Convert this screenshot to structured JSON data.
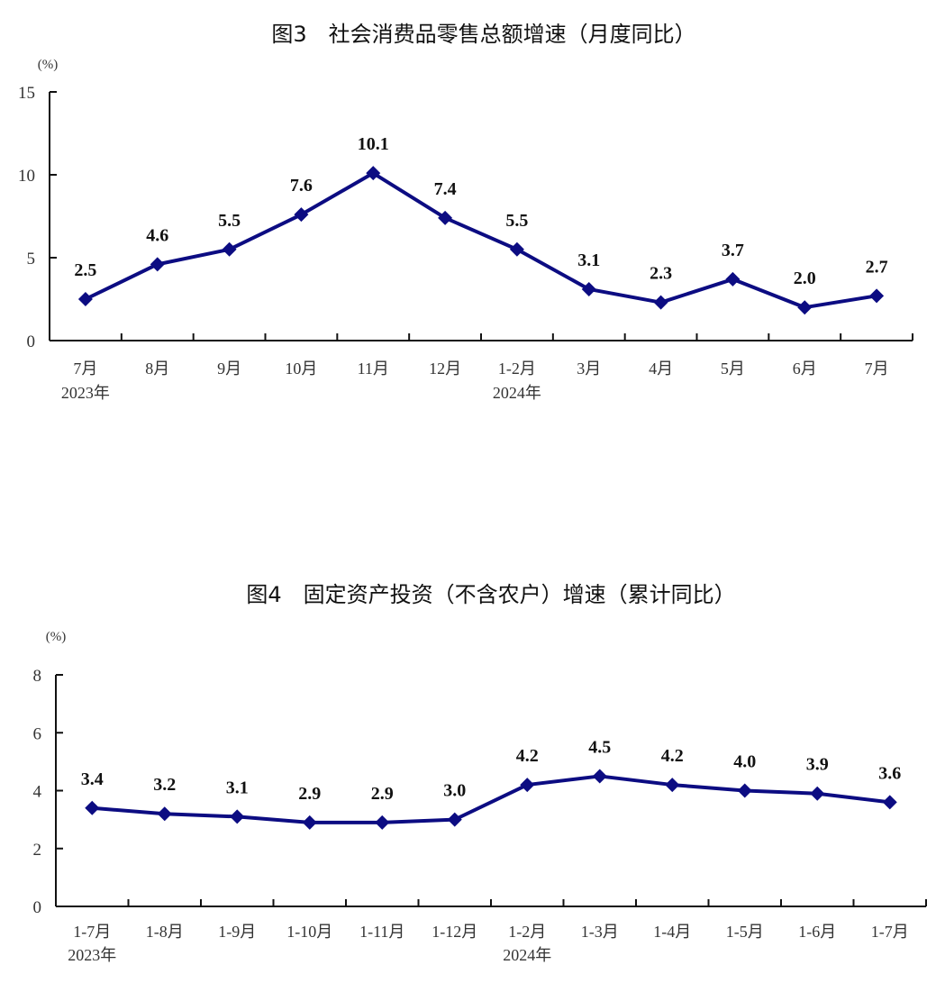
{
  "chart_data": [
    {
      "type": "line",
      "title": "图3　社会消费品零售总额增速（月度同比）",
      "ylabel": "(%)",
      "ylim": [
        0,
        15
      ],
      "yticks": [
        "0",
        "5",
        "10",
        "15"
      ],
      "categories": [
        "7月",
        "8月",
        "9月",
        "10月",
        "11月",
        "12月",
        "1-2月",
        "3月",
        "4月",
        "5月",
        "6月",
        "7月"
      ],
      "year_labels": [
        {
          "index": 0,
          "text": "2023年"
        },
        {
          "index": 6,
          "text": "2024年"
        }
      ],
      "values": [
        2.5,
        4.6,
        5.5,
        7.6,
        10.1,
        7.4,
        5.5,
        3.1,
        2.3,
        3.7,
        2.0,
        2.7
      ],
      "value_labels": [
        "2.5",
        "4.6",
        "5.5",
        "7.6",
        "10.1",
        "7.4",
        "5.5",
        "3.1",
        "2.3",
        "3.7",
        "2.0",
        "2.7"
      ],
      "color": "#0c0c82",
      "grid": false
    },
    {
      "type": "line",
      "title": "图4　固定资产投资（不含农户）增速（累计同比）",
      "ylabel": "(%)",
      "ylim": [
        0,
        8
      ],
      "yticks": [
        "0",
        "2",
        "4",
        "6",
        "8"
      ],
      "categories": [
        "1-7月",
        "1-8月",
        "1-9月",
        "1-10月",
        "1-11月",
        "1-12月",
        "1-2月",
        "1-3月",
        "1-4月",
        "1-5月",
        "1-6月",
        "1-7月"
      ],
      "year_labels": [
        {
          "index": 0,
          "text": "2023年"
        },
        {
          "index": 6,
          "text": "2024年"
        }
      ],
      "values": [
        3.4,
        3.2,
        3.1,
        2.9,
        2.9,
        3.0,
        4.2,
        4.5,
        4.2,
        4.0,
        3.9,
        3.6
      ],
      "value_labels": [
        "3.4",
        "3.2",
        "3.1",
        "2.9",
        "2.9",
        "3.0",
        "4.2",
        "4.5",
        "4.2",
        "4.0",
        "3.9",
        "3.6"
      ],
      "color": "#0c0c82",
      "grid": false
    }
  ]
}
